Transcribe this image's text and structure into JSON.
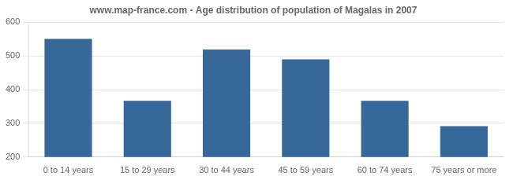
{
  "chart_data": {
    "type": "bar",
    "title": "www.map-france.com - Age distribution of population of Magalas in 2007",
    "categories": [
      "0 to 14 years",
      "15 to 29 years",
      "30 to 44 years",
      "45 to 59 years",
      "60 to 74 years",
      "75 years or more"
    ],
    "values": [
      551,
      367,
      519,
      490,
      367,
      292
    ],
    "color": "#36699a",
    "ylim": [
      200,
      600
    ],
    "yticks": [
      200,
      300,
      400,
      500,
      600
    ],
    "grid": true
  }
}
